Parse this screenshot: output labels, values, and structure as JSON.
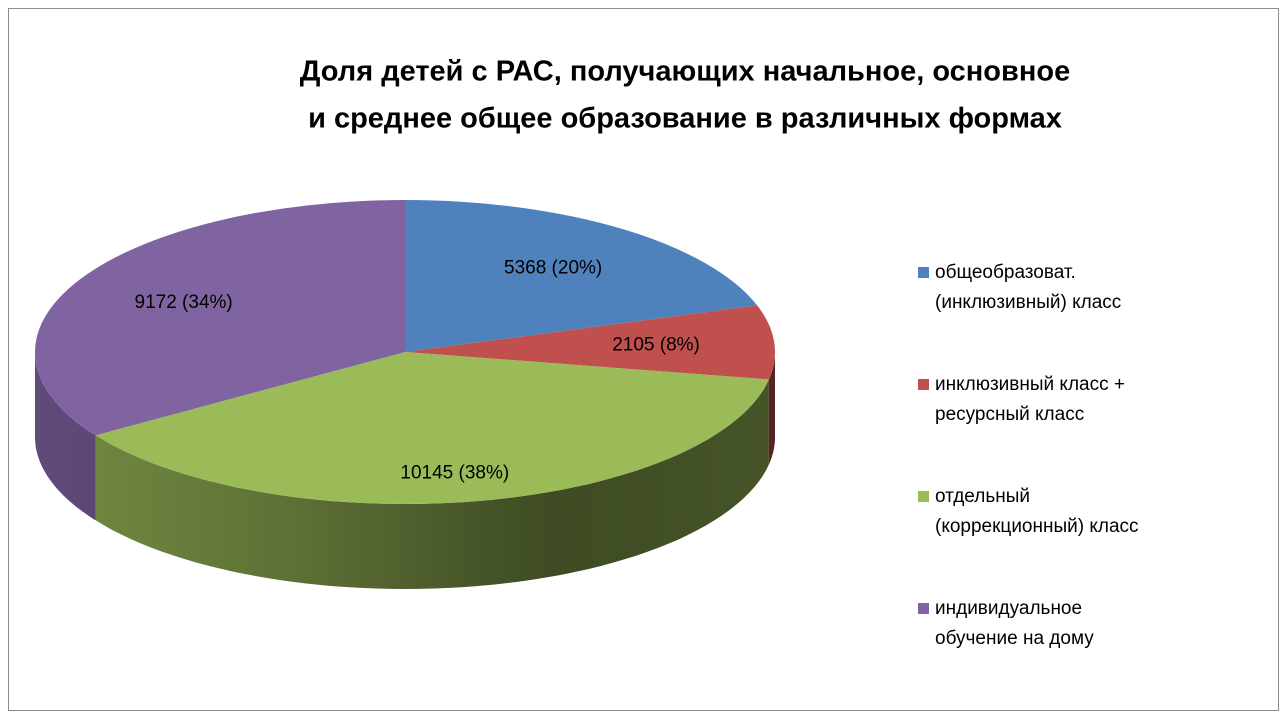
{
  "chart_data": {
    "type": "pie3d",
    "title": [
      "Доля детей с РАС, получающих начальное, основное",
      "и среднее общее образование в различных формах"
    ],
    "categories": [
      "общеобразоват. (инклюзивный) класс",
      "инклюзивный класс + ресурсный класс",
      "отдельный (коррекционный) класс",
      "индивидуальное обучение на дому"
    ],
    "values": [
      5368,
      2105,
      10145,
      9172
    ],
    "value_labels": [
      "5368 (20%)",
      "2105 (8%)",
      "10145 (38%)",
      "9172 (34%)"
    ],
    "colors": [
      "#4f81bd",
      "#c0504d",
      "#9bbb59",
      "#8064a2"
    ],
    "legend": "right"
  }
}
